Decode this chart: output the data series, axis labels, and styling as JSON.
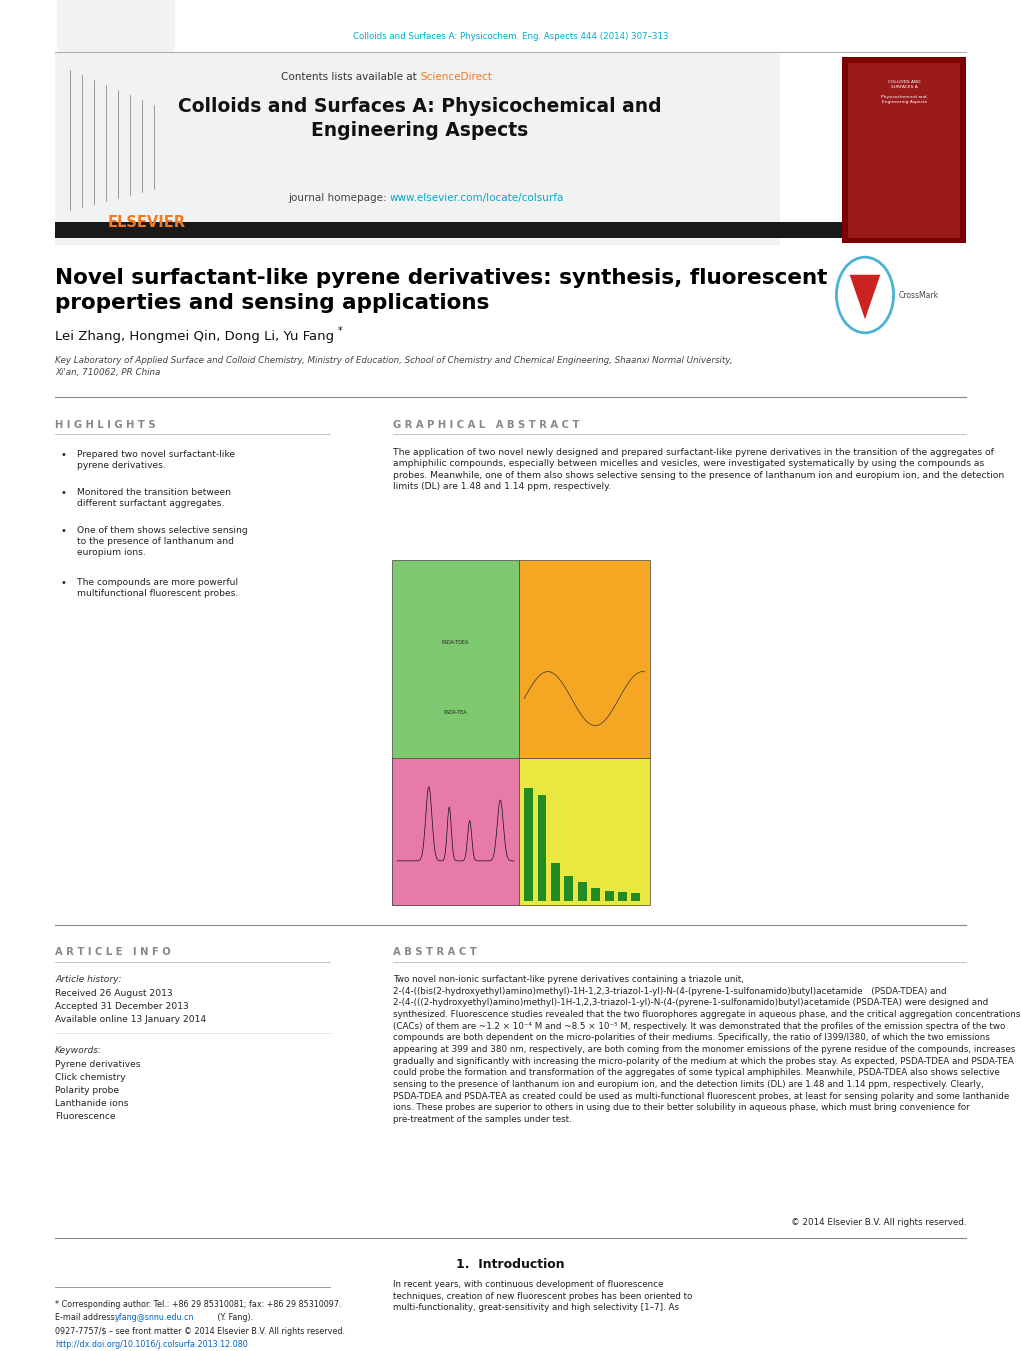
{
  "page_width": 10.21,
  "page_height": 13.51,
  "bg_color": "#ffffff",
  "top_link_text": "Colloids and Surfaces A: Physicochem. Eng. Aspects 444 (2014) 307–313",
  "top_link_color": "#00aacc",
  "header_bg": "#f0f0f0",
  "header_sciencedirect_color": "#f47920",
  "journal_title": "Colloids and Surfaces A: Physicochemical and\nEngineering Aspects",
  "journal_homepage_url": "www.elsevier.com/locate/colsurfa",
  "journal_homepage_url_color": "#00aacc",
  "black_bar_color": "#1a1a1a",
  "article_title": "Novel surfactant-like pyrene derivatives: synthesis, fluorescent\nproperties and sensing applications",
  "article_title_color": "#000000",
  "authors": "Lei Zhang, Hongmei Qin, Dong Li, Yu Fang",
  "affiliation": "Key Laboratory of Applied Surface and Colloid Chemistry, Ministry of Education, School of Chemistry and Chemical Engineering, Shaanxi Normal University,\nXi'an, 710062, PR China",
  "highlights_title": "H I G H L I G H T S",
  "graphical_abstract_title": "G R A P H I C A L   A B S T R A C T",
  "highlights_points": [
    "Prepared two novel surfactant-like\npyrene derivatives.",
    "Monitored the transition between\ndifferent surfactant aggregates.",
    "One of them shows selective sensing\nto the presence of lanthanum and\neuropium ions.",
    "The compounds are more powerful\nmultifunctional fluorescent probes."
  ],
  "graphical_abstract_text": "The application of two novel newly designed and prepared surfactant-like pyrene derivatives in the transition of the aggregates of amphiphilic compounds, especially between micelles and vesicles, were investigated systematically by using the compounds as probes. Meanwhile, one of them also shows selective sensing to the presence of lanthanum ion and europium ion, and the detection limits (DL) are 1.48 and 1.14 ppm, respectively.",
  "article_info_title": "A R T I C L E   I N F O",
  "abstract_title": "A B S T R A C T",
  "article_history_label": "Article history:",
  "received": "Received 26 August 2013",
  "accepted": "Accepted 31 December 2013",
  "available": "Available online 13 January 2014",
  "keywords_label": "Keywords:",
  "keywords": [
    "Pyrene derivatives",
    "Click chemistry",
    "Polarity probe",
    "Lanthanide ions",
    "Fluorescence"
  ],
  "abstract_text": "Two novel non-ionic surfactant-like pyrene derivatives containing a triazole unit, 2-(4-((bis(2-hydroxyethyl)amino)methyl)-1H-1,2,3-triazol-1-yl)-N-(4-(pyrene-1-sulfonamido)butyl)acetamide (PSDA-TDEA) and 2-(4-(((2-hydroxyethyl)amino)methyl)-1H-1,2,3-triazol-1-yl)-N-(4-(pyrene-1-sulfonamido)butyl)acetamide (PSDA-TEA) were designed and synthesized. Fluorescence studies revealed that the two fluorophores aggregate in aqueous phase, and the critical aggregation concentrations (CACs) of them are ~1.2 × 10⁻⁴ M and ~8.5 × 10⁻⁵ M, respectively. It was demonstrated that the profiles of the emission spectra of the two compounds are both dependent on the micro-polarities of their mediums. Specifically, the ratio of I399/I380, of which the two emissions appearing at 399 and 380 nm, respectively, are both coming from the monomer emissions of the pyrene residue of the compounds, increases gradually and significantly with increasing the micro-polarity of the medium at which the probes stay. As expected, PSDA-TDEA and PSDA-TEA could probe the formation and transformation of the aggregates of some typical amphiphiles. Meanwhile, PSDA-TDEA also shows selective sensing to the presence of lanthanum ion and europium ion, and the detection limits (DL) are 1.48 and 1.14 ppm, respectively. Clearly, PSDA-TDEA and PSDA-TEA as created could be used as multi-functional fluorescent probes, at least for sensing polarity and some lanthanide ions. These probes are superior to others in using due to their better solubility in aqueous phase, which must bring convenience for pre-treatment of the samples under test.",
  "copyright_text": "© 2014 Elsevier B.V. All rights reserved.",
  "intro_title": "1.  Introduction",
  "intro_text": "In recent years, with continuous development of fluorescence\ntechniques, creation of new fluorescent probes has been oriented to\nmulti-functionality, great-sensitivity and high selectivity [1–7]. As",
  "footnote_line1": "* Corresponding author. Tel.: +86 29 85310081; fax: +86 29 85310097.",
  "footnote_email_label": "E-mail address: ",
  "footnote_email": "yfang@snnu.edu.cn",
  "footnote_email_rest": " (Y. Fang).",
  "footnote_issn": "0927-7757/$ – see front matter © 2014 Elsevier B.V. All rights reserved.",
  "footnote_doi": "http://dx.doi.org/10.1016/j.colsurfa.2013.12.080",
  "elsevier_color": "#f47920",
  "separator_color": "#888888",
  "section_title_color": "#888888"
}
